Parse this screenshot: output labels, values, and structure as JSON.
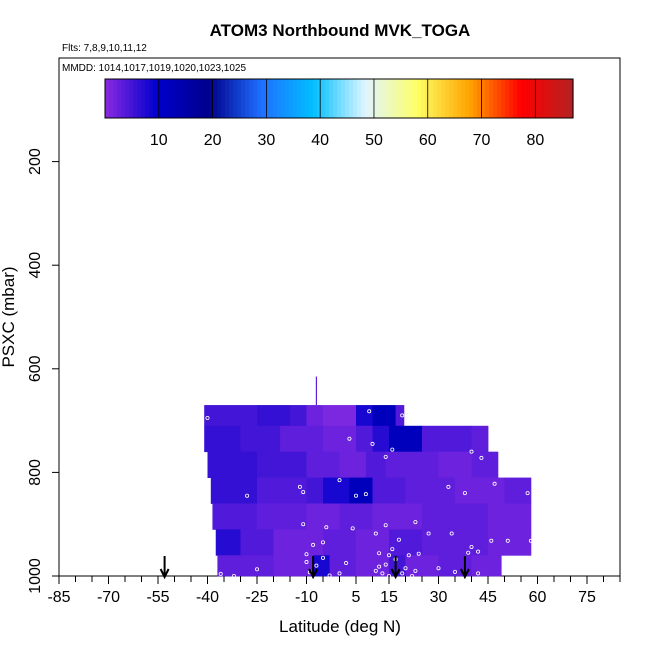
{
  "chart_data": {
    "type": "heatmap",
    "title": "ATOM3 Northbound MVK_TOGA",
    "flights_note": "Flts: 7,8,9,10,11,12",
    "dates_note": "MMDD: 1014,1017,1019,1020,1023,1025",
    "xlabel": "Latitude (deg N)",
    "ylabel": "PSXC (mbar)",
    "xlim": [
      -85,
      85
    ],
    "ylim": [
      1000,
      0
    ],
    "x_ticks": [
      -85,
      -70,
      -55,
      -40,
      -25,
      -10,
      5,
      15,
      30,
      45,
      60,
      75
    ],
    "x_tick_labels": [
      "-85",
      "-70",
      "-55",
      "-40",
      "-25",
      "-10",
      "5",
      "15",
      "30",
      "45",
      "60",
      "75"
    ],
    "y_ticks": [
      200,
      400,
      600,
      800,
      1000
    ],
    "y_tick_labels": [
      "200",
      "400",
      "600",
      "800",
      "1000"
    ],
    "colorbar": {
      "min": 0,
      "max": 87,
      "ticks": [
        10,
        20,
        30,
        40,
        50,
        60,
        70,
        80
      ],
      "tick_labels": [
        "10",
        "20",
        "30",
        "40",
        "50",
        "60",
        "70",
        "80"
      ],
      "colors": [
        "#8a2be2",
        "#0000cc",
        "#00008b",
        "#1e6fff",
        "#00bfff",
        "#dff4ff",
        "#ffff66",
        "#ffa500",
        "#ff0000",
        "#b22222"
      ]
    },
    "profile_markers_lat": [
      -53,
      -8,
      17,
      38
    ],
    "bands": [
      {
        "p_top": 670,
        "p_bot": 710,
        "x0": -41,
        "x1": 19.5,
        "cells": [
          [
            -41,
            -25,
            5
          ],
          [
            -25,
            -15,
            6
          ],
          [
            -15,
            -10,
            5
          ],
          [
            -10,
            -5,
            2
          ],
          [
            -5,
            5,
            1
          ],
          [
            5,
            10,
            8
          ],
          [
            10,
            17,
            12
          ],
          [
            17,
            19.5,
            4
          ]
        ]
      },
      {
        "p_top": 710,
        "p_bot": 760,
        "x0": -41,
        "x1": 45,
        "cells": [
          [
            -41,
            -30,
            6
          ],
          [
            -30,
            -18,
            5
          ],
          [
            -18,
            -5,
            3
          ],
          [
            -5,
            5,
            2
          ],
          [
            5,
            10,
            4
          ],
          [
            10,
            15,
            7
          ],
          [
            15,
            25,
            12
          ],
          [
            25,
            40,
            4
          ],
          [
            40,
            45,
            3
          ]
        ]
      },
      {
        "p_top": 760,
        "p_bot": 810,
        "x0": -40,
        "x1": 48,
        "cells": [
          [
            -40,
            -25,
            6
          ],
          [
            -25,
            -10,
            5
          ],
          [
            -10,
            0,
            3
          ],
          [
            0,
            8,
            2
          ],
          [
            8,
            14,
            4
          ],
          [
            14,
            30,
            3
          ],
          [
            30,
            40,
            2
          ],
          [
            40,
            48,
            3
          ]
        ]
      },
      {
        "p_top": 810,
        "p_bot": 860,
        "x0": -39,
        "x1": 58,
        "cells": [
          [
            -39,
            -25,
            6
          ],
          [
            -25,
            -10,
            4
          ],
          [
            -10,
            -5,
            5
          ],
          [
            -5,
            3,
            8
          ],
          [
            3,
            10,
            12
          ],
          [
            10,
            20,
            4
          ],
          [
            20,
            35,
            3
          ],
          [
            35,
            50,
            2
          ],
          [
            50,
            58,
            3
          ]
        ]
      },
      {
        "p_top": 860,
        "p_bot": 910,
        "x0": -38.5,
        "x1": 58,
        "cells": [
          [
            -38.5,
            -25,
            4
          ],
          [
            -25,
            -10,
            3
          ],
          [
            -10,
            0,
            2
          ],
          [
            0,
            10,
            3
          ],
          [
            10,
            25,
            2
          ],
          [
            25,
            45,
            3
          ],
          [
            45,
            58,
            2
          ]
        ]
      },
      {
        "p_top": 910,
        "p_bot": 960,
        "x0": -37.5,
        "x1": 58,
        "cells": [
          [
            -37.5,
            -30,
            7
          ],
          [
            -30,
            -20,
            4
          ],
          [
            -20,
            -5,
            2
          ],
          [
            -5,
            5,
            3
          ],
          [
            5,
            15,
            2
          ],
          [
            15,
            25,
            4
          ],
          [
            25,
            45,
            3
          ],
          [
            45,
            58,
            2
          ]
        ]
      },
      {
        "p_top": 960,
        "p_bot": 1000,
        "x0": -37,
        "x1": 49,
        "cells": [
          [
            -37,
            -20,
            3
          ],
          [
            -20,
            -8,
            2
          ],
          [
            -8,
            -3,
            8
          ],
          [
            -3,
            5,
            3
          ],
          [
            5,
            15,
            2
          ],
          [
            15,
            20,
            5
          ],
          [
            20,
            30,
            2
          ],
          [
            30,
            40,
            3
          ],
          [
            40,
            49,
            2
          ]
        ]
      }
    ],
    "spike": {
      "lat": -7,
      "p_top": 615,
      "p_bot": 670,
      "value": 3
    },
    "sample_points": [
      [
        -40,
        695
      ],
      [
        9,
        682
      ],
      [
        19,
        690
      ],
      [
        10,
        745
      ],
      [
        3,
        735
      ],
      [
        16,
        756
      ],
      [
        14,
        770
      ],
      [
        40,
        760
      ],
      [
        43,
        772
      ],
      [
        0,
        815
      ],
      [
        -12,
        828
      ],
      [
        -11,
        838
      ],
      [
        -28,
        845
      ],
      [
        8,
        842
      ],
      [
        5,
        845
      ],
      [
        33,
        828
      ],
      [
        38,
        840
      ],
      [
        47,
        822
      ],
      [
        57,
        840
      ],
      [
        -11,
        900
      ],
      [
        -4,
        906
      ],
      [
        4,
        908
      ],
      [
        14,
        902
      ],
      [
        11,
        918
      ],
      [
        23,
        896
      ],
      [
        27,
        918
      ],
      [
        34,
        918
      ],
      [
        -5,
        935
      ],
      [
        -8,
        940
      ],
      [
        18,
        930
      ],
      [
        16,
        948
      ],
      [
        40,
        944
      ],
      [
        46,
        932
      ],
      [
        51,
        932
      ],
      [
        58,
        932
      ],
      [
        -10,
        958
      ],
      [
        -5,
        965
      ],
      [
        12,
        956
      ],
      [
        15,
        960
      ],
      [
        21,
        960
      ],
      [
        24,
        957
      ],
      [
        39,
        955
      ],
      [
        42,
        953
      ],
      [
        -10,
        973
      ],
      [
        -7,
        980
      ],
      [
        2,
        975
      ],
      [
        12,
        982
      ],
      [
        14,
        978
      ],
      [
        17,
        968
      ],
      [
        20,
        985
      ],
      [
        -25,
        987
      ],
      [
        -38,
        990
      ],
      [
        -36,
        996
      ],
      [
        -9,
        993
      ],
      [
        0,
        995
      ],
      [
        11,
        990
      ],
      [
        13,
        995
      ],
      [
        15,
        1000
      ],
      [
        19,
        995
      ],
      [
        23,
        990
      ],
      [
        30,
        985
      ],
      [
        35,
        992
      ],
      [
        42,
        995
      ],
      [
        -32,
        1000
      ],
      [
        -3,
        999
      ],
      [
        22,
        1000
      ]
    ]
  }
}
